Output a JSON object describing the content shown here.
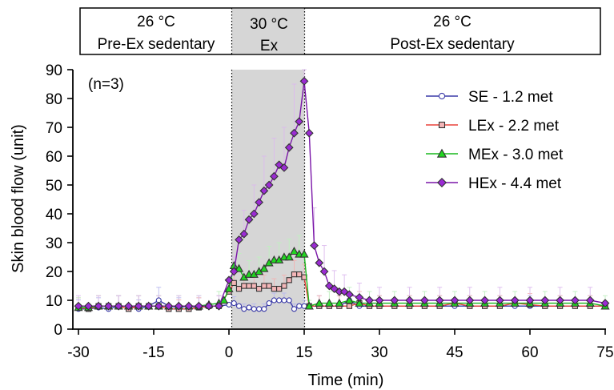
{
  "chart_data": {
    "type": "line",
    "title": "",
    "xlabel": "Time (min)",
    "ylabel": "Skin blood flow (unit)",
    "xlim": [
      -30,
      75
    ],
    "ylim": [
      0,
      90
    ],
    "xticks": [
      "-30",
      "-15",
      "0",
      "15",
      "30",
      "45",
      "60",
      "75"
    ],
    "yticks": [
      "0",
      "10",
      "20",
      "30",
      "40",
      "50",
      "60",
      "70",
      "80",
      "90"
    ],
    "annotation": "(n=3)",
    "legend_position": "right",
    "exercise_window": [
      0,
      15
    ],
    "phases": [
      {
        "temp": "26 °C",
        "label": "Pre-Ex sedentary",
        "x_range": [
          -30,
          0
        ]
      },
      {
        "temp": "30 °C",
        "label": "Ex",
        "x_range": [
          0,
          15
        ]
      },
      {
        "temp": "26 °C",
        "label": "Post-Ex sedentary",
        "x_range": [
          15,
          75
        ]
      }
    ],
    "series": [
      {
        "name": "SE - 1.2 met",
        "color": "#3b3ba8",
        "fill": "#ffffff",
        "marker": "circle",
        "points": [
          [
            -30,
            7
          ],
          [
            -28,
            7
          ],
          [
            -26,
            7.5
          ],
          [
            -24,
            7
          ],
          [
            -22,
            8
          ],
          [
            -20,
            8
          ],
          [
            -18,
            7
          ],
          [
            -16,
            8
          ],
          [
            -14,
            10
          ],
          [
            -12,
            8
          ],
          [
            -10,
            7.5
          ],
          [
            -8,
            8
          ],
          [
            -6,
            7.5
          ],
          [
            -4,
            8
          ],
          [
            -2,
            8
          ],
          [
            0,
            8.5
          ],
          [
            1,
            9
          ],
          [
            2,
            8
          ],
          [
            3,
            7
          ],
          [
            4,
            7.5
          ],
          [
            5,
            7
          ],
          [
            6,
            7
          ],
          [
            7,
            7
          ],
          [
            8,
            9
          ],
          [
            9,
            10
          ],
          [
            10,
            10
          ],
          [
            11,
            10
          ],
          [
            12,
            10
          ],
          [
            13,
            7
          ],
          [
            14,
            8
          ],
          [
            15,
            8
          ],
          [
            16,
            8
          ],
          [
            18,
            8
          ],
          [
            20,
            8
          ],
          [
            22,
            8
          ],
          [
            24,
            10
          ],
          [
            26,
            8
          ],
          [
            28,
            8
          ],
          [
            30,
            8
          ],
          [
            33,
            8
          ],
          [
            36,
            8
          ],
          [
            39,
            8
          ],
          [
            42,
            8
          ],
          [
            45,
            8
          ],
          [
            48,
            8
          ],
          [
            51,
            8
          ],
          [
            54,
            8
          ],
          [
            57,
            8
          ],
          [
            60,
            8
          ],
          [
            63,
            8
          ],
          [
            66,
            8
          ],
          [
            69,
            8
          ],
          [
            72,
            8
          ],
          [
            75,
            8
          ]
        ]
      },
      {
        "name": "LEx - 2.2 met",
        "color": "#e8423a",
        "fill": "#f4b6b8",
        "marker": "square",
        "points": [
          [
            -30,
            7.5
          ],
          [
            -28,
            7
          ],
          [
            -26,
            8
          ],
          [
            -24,
            8
          ],
          [
            -22,
            8
          ],
          [
            -20,
            7
          ],
          [
            -18,
            8
          ],
          [
            -16,
            8
          ],
          [
            -14,
            8
          ],
          [
            -12,
            7
          ],
          [
            -10,
            7
          ],
          [
            -8,
            7
          ],
          [
            -6,
            7.5
          ],
          [
            -4,
            8
          ],
          [
            -2,
            8
          ],
          [
            0,
            13
          ],
          [
            1,
            16
          ],
          [
            2,
            14
          ],
          [
            3,
            15
          ],
          [
            4,
            15
          ],
          [
            5,
            15
          ],
          [
            6,
            14
          ],
          [
            7,
            15
          ],
          [
            8,
            15
          ],
          [
            9,
            14
          ],
          [
            10,
            14
          ],
          [
            11,
            15
          ],
          [
            12,
            17
          ],
          [
            13,
            19
          ],
          [
            14,
            19
          ],
          [
            15,
            18
          ],
          [
            16,
            8
          ],
          [
            18,
            8
          ],
          [
            20,
            8
          ],
          [
            22,
            8
          ],
          [
            24,
            8
          ],
          [
            26,
            9
          ],
          [
            28,
            8
          ],
          [
            30,
            8
          ],
          [
            33,
            8
          ],
          [
            36,
            8
          ],
          [
            39,
            8
          ],
          [
            42,
            8
          ],
          [
            45,
            9
          ],
          [
            48,
            8
          ],
          [
            51,
            8
          ],
          [
            54,
            8
          ],
          [
            57,
            9
          ],
          [
            60,
            8.5
          ],
          [
            63,
            8
          ],
          [
            66,
            8
          ],
          [
            69,
            8
          ],
          [
            72,
            8
          ],
          [
            75,
            8
          ]
        ]
      },
      {
        "name": "MEx - 3.0 met",
        "color": "#19b81e",
        "fill": "#21d621",
        "marker": "triangle",
        "points": [
          [
            -30,
            7.5
          ],
          [
            -28,
            7.5
          ],
          [
            -26,
            8
          ],
          [
            -24,
            8
          ],
          [
            -22,
            8
          ],
          [
            -20,
            8
          ],
          [
            -18,
            8
          ],
          [
            -16,
            8
          ],
          [
            -14,
            8
          ],
          [
            -12,
            8
          ],
          [
            -10,
            8
          ],
          [
            -8,
            8
          ],
          [
            -6,
            8
          ],
          [
            -4,
            8.5
          ],
          [
            -2,
            9
          ],
          [
            -1,
            10
          ],
          [
            0,
            14
          ],
          [
            1,
            22
          ],
          [
            2,
            21
          ],
          [
            3,
            18
          ],
          [
            4,
            19
          ],
          [
            5,
            19
          ],
          [
            6,
            20
          ],
          [
            7,
            21
          ],
          [
            8,
            23
          ],
          [
            9,
            24
          ],
          [
            10,
            24
          ],
          [
            11,
            25
          ],
          [
            12,
            25
          ],
          [
            13,
            27
          ],
          [
            14,
            26
          ],
          [
            15,
            26
          ],
          [
            16,
            8
          ],
          [
            18,
            9
          ],
          [
            20,
            9
          ],
          [
            22,
            9
          ],
          [
            24,
            10
          ],
          [
            26,
            9
          ],
          [
            28,
            9
          ],
          [
            30,
            9
          ],
          [
            33,
            9
          ],
          [
            36,
            9
          ],
          [
            39,
            9
          ],
          [
            42,
            9
          ],
          [
            45,
            9
          ],
          [
            48,
            9
          ],
          [
            51,
            9
          ],
          [
            54,
            9
          ],
          [
            57,
            9
          ],
          [
            60,
            9
          ],
          [
            63,
            9
          ],
          [
            66,
            9
          ],
          [
            69,
            9
          ],
          [
            72,
            9
          ],
          [
            75,
            8
          ]
        ]
      },
      {
        "name": "HEx - 4.4 met",
        "color": "#7a16a8",
        "fill": "#9b2bd4",
        "marker": "diamond",
        "points": [
          [
            -30,
            8
          ],
          [
            -28,
            8
          ],
          [
            -26,
            8
          ],
          [
            -24,
            8
          ],
          [
            -22,
            8
          ],
          [
            -20,
            8
          ],
          [
            -18,
            8
          ],
          [
            -16,
            8
          ],
          [
            -14,
            8
          ],
          [
            -12,
            8
          ],
          [
            -10,
            8
          ],
          [
            -8,
            8
          ],
          [
            -6,
            8
          ],
          [
            -4,
            8
          ],
          [
            -2,
            8
          ],
          [
            0,
            17
          ],
          [
            1,
            20
          ],
          [
            2,
            31
          ],
          [
            3,
            33
          ],
          [
            4,
            38
          ],
          [
            5,
            40
          ],
          [
            6,
            44
          ],
          [
            7,
            48
          ],
          [
            8,
            50
          ],
          [
            9,
            53
          ],
          [
            10,
            57
          ],
          [
            11,
            56
          ],
          [
            12,
            63
          ],
          [
            13,
            68
          ],
          [
            14,
            72
          ],
          [
            15,
            86
          ],
          [
            16,
            68
          ],
          [
            17,
            29
          ],
          [
            18,
            23
          ],
          [
            19,
            20
          ],
          [
            20,
            15
          ],
          [
            21,
            14
          ],
          [
            22,
            13
          ],
          [
            23,
            13
          ],
          [
            24,
            12
          ],
          [
            26,
            11
          ],
          [
            28,
            10
          ],
          [
            30,
            10
          ],
          [
            33,
            10
          ],
          [
            36,
            10
          ],
          [
            39,
            10
          ],
          [
            42,
            10
          ],
          [
            45,
            10
          ],
          [
            48,
            10
          ],
          [
            51,
            10
          ],
          [
            54,
            10
          ],
          [
            57,
            10
          ],
          [
            60,
            10
          ],
          [
            63,
            10
          ],
          [
            66,
            10
          ],
          [
            69,
            10
          ],
          [
            72,
            10
          ],
          [
            75,
            9
          ]
        ]
      }
    ]
  }
}
